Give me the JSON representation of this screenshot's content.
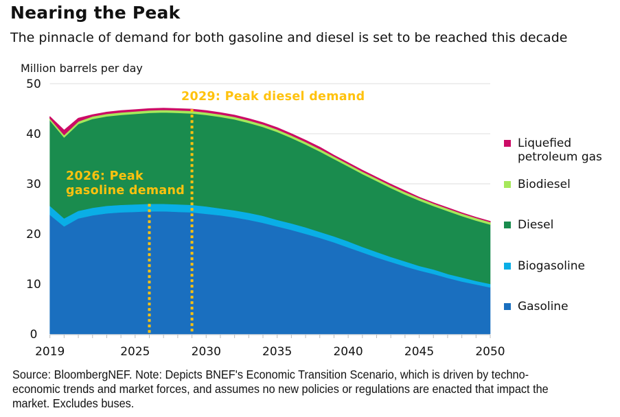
{
  "header": {
    "title": "Nearing the Peak",
    "subtitle": "The pinnacle of demand for both gasoline and diesel is set to be reached this decade"
  },
  "footer": {
    "source": "Source: BloombergNEF. Note: Depicts BNEF's Economic Transition Scenario, which is driven by techno-economic trends and market forces, and assumes no new policies or regulations are enacted that impact the market. Excludes buses."
  },
  "chart_data": {
    "type": "area",
    "stacked": true,
    "title": "Nearing the Peak",
    "subtitle": "The pinnacle of demand for both gasoline and diesel is set to be reached this decade",
    "xlabel": "",
    "ylabel": "Million barrels per day",
    "xlim": [
      2019,
      2050
    ],
    "ylim": [
      0,
      50
    ],
    "yticks": [
      0,
      10,
      20,
      30,
      40,
      50
    ],
    "xtick_labels": [
      "2019",
      "2025",
      "2030",
      "2035",
      "2040",
      "2045",
      "2050"
    ],
    "xtick_values": [
      2019,
      2025,
      2030,
      2035,
      2040,
      2045,
      2050
    ],
    "grid": "horizontal",
    "legend_position": "right",
    "x": [
      2019,
      2020,
      2021,
      2022,
      2023,
      2024,
      2025,
      2026,
      2027,
      2028,
      2029,
      2030,
      2031,
      2032,
      2033,
      2034,
      2035,
      2036,
      2037,
      2038,
      2039,
      2040,
      2041,
      2042,
      2043,
      2044,
      2045,
      2046,
      2047,
      2048,
      2049,
      2050
    ],
    "series": [
      {
        "name": "Gasoline",
        "color": "#1a6fbf",
        "values": [
          23.8,
          21.5,
          23.1,
          23.7,
          24.1,
          24.3,
          24.4,
          24.5,
          24.5,
          24.4,
          24.3,
          24.0,
          23.7,
          23.3,
          22.8,
          22.2,
          21.5,
          20.8,
          20.0,
          19.2,
          18.3,
          17.3,
          16.3,
          15.3,
          14.4,
          13.5,
          12.7,
          12.0,
          11.2,
          10.5,
          9.9,
          9.3
        ]
      },
      {
        "name": "Biogasoline",
        "color": "#0aaee6",
        "values": [
          1.8,
          1.6,
          1.5,
          1.5,
          1.5,
          1.5,
          1.5,
          1.5,
          1.5,
          1.5,
          1.5,
          1.5,
          1.4,
          1.4,
          1.4,
          1.4,
          1.3,
          1.3,
          1.3,
          1.2,
          1.2,
          1.2,
          1.1,
          1.1,
          1.0,
          1.0,
          0.9,
          0.9,
          0.8,
          0.8,
          0.7,
          0.7
        ]
      },
      {
        "name": "Diesel",
        "color": "#1a8c4e",
        "values": [
          17.1,
          16.2,
          17.4,
          17.8,
          17.9,
          18.0,
          18.1,
          18.2,
          18.3,
          18.3,
          18.3,
          18.3,
          18.3,
          18.2,
          18.0,
          17.8,
          17.6,
          17.1,
          16.6,
          16.1,
          15.5,
          15.0,
          14.6,
          14.2,
          13.8,
          13.4,
          13.1,
          12.7,
          12.6,
          12.3,
          12.1,
          11.9
        ]
      },
      {
        "name": "Biodiesel",
        "color": "#a6e85b",
        "values": [
          0.4,
          0.5,
          0.5,
          0.5,
          0.5,
          0.5,
          0.5,
          0.5,
          0.5,
          0.5,
          0.5,
          0.5,
          0.5,
          0.5,
          0.5,
          0.5,
          0.5,
          0.5,
          0.5,
          0.5,
          0.5,
          0.5,
          0.5,
          0.5,
          0.5,
          0.5,
          0.5,
          0.5,
          0.5,
          0.5,
          0.5,
          0.5
        ]
      },
      {
        "name": "Liquefied petroleum gas",
        "color": "#cc0b66",
        "values": [
          0.3,
          0.9,
          0.6,
          0.3,
          0.3,
          0.3,
          0.3,
          0.3,
          0.3,
          0.3,
          0.3,
          0.3,
          0.3,
          0.3,
          0.3,
          0.3,
          0.3,
          0.3,
          0.3,
          0.3,
          0.2,
          0.2,
          0.2,
          0.2,
          0.2,
          0.2,
          0.1,
          0.1,
          0.1,
          0.1,
          0.1,
          0.1
        ]
      }
    ],
    "annotations": [
      {
        "x": 2026,
        "label": "2026: Peak gasoline demand",
        "line1": "2026: Peak",
        "line2": "gasoline demand",
        "from_series": "Biogasoline"
      },
      {
        "x": 2029,
        "label": "2029: Peak diesel demand",
        "from_series": "Liquefied petroleum gas"
      }
    ],
    "annotation_color": "#ffc20e"
  },
  "legend": [
    {
      "label_line1": "Liquefied",
      "label_line2": "petroleum gas",
      "color": "#cc0b66"
    },
    {
      "label_line1": "Biodiesel",
      "color": "#a6e85b"
    },
    {
      "label_line1": "Diesel",
      "color": "#1a8c4e"
    },
    {
      "label_line1": "Biogasoline",
      "color": "#0aaee6"
    },
    {
      "label_line1": "Gasoline",
      "color": "#1a6fbf"
    }
  ]
}
